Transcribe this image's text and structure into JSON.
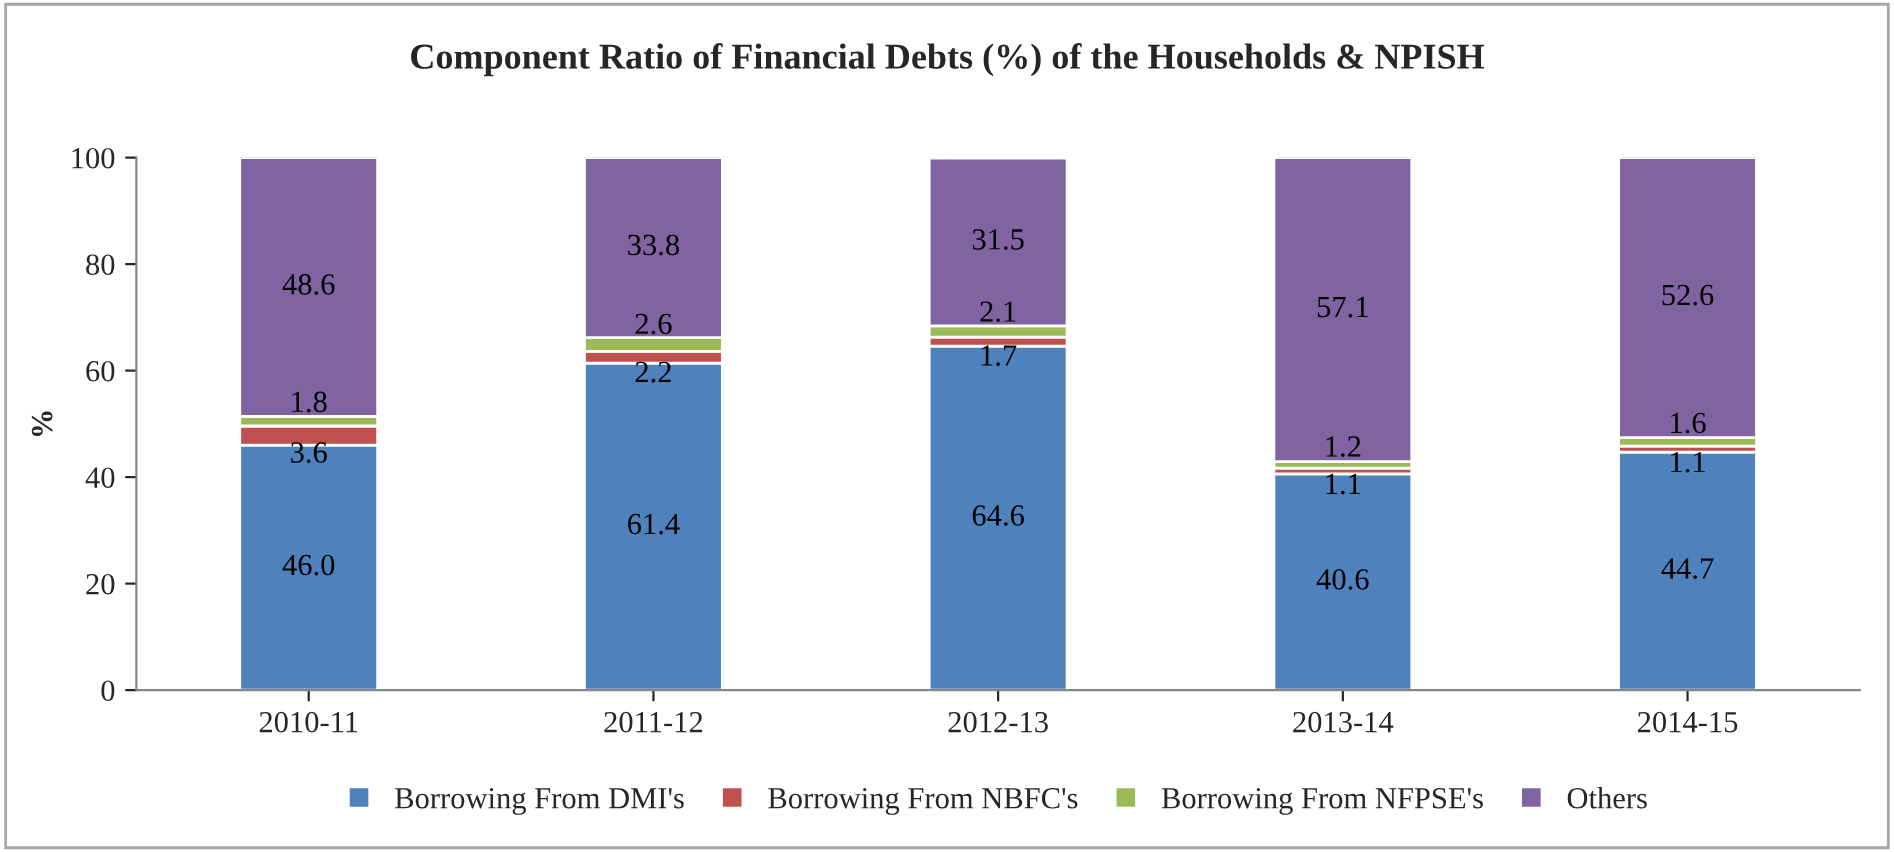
{
  "chart_data": {
    "type": "bar",
    "stacked": true,
    "title": "Component Ratio of Financial Debts (%) of the Households & NPISH",
    "ylabel": "%",
    "categories": [
      "2010-11",
      "2011-12",
      "2012-13",
      "2013-14",
      "2014-15"
    ],
    "series": [
      {
        "name": "Borrowing From DMI's",
        "color": "#4f81bd",
        "values": [
          46.0,
          61.4,
          64.6,
          40.6,
          44.7
        ],
        "value_labels": [
          "46.0",
          "61.4",
          "64.6",
          "40.6",
          "44.7"
        ]
      },
      {
        "name": "Borrowing From NBFC's",
        "color": "#c0504d",
        "values": [
          3.6,
          2.2,
          1.7,
          1.1,
          1.1
        ],
        "value_labels": [
          "3.6",
          "2.2",
          "1.7",
          "1.1",
          "1.1"
        ]
      },
      {
        "name": "Borrowing From NFPSE's",
        "color": "#9bbb59",
        "values": [
          1.8,
          2.6,
          2.1,
          1.2,
          1.6
        ],
        "value_labels": [
          "1.8",
          "2.6",
          "2.1",
          "1.2",
          "1.6"
        ]
      },
      {
        "name": "Others",
        "color": "#8064a2",
        "values": [
          48.6,
          33.8,
          31.5,
          57.1,
          52.6
        ],
        "value_labels": [
          "48.6",
          "33.8",
          "31.5",
          "57.1",
          "52.6"
        ]
      }
    ],
    "ylim": [
      0,
      100
    ],
    "yticks": [
      0,
      20,
      40,
      60,
      80,
      100
    ],
    "grid": false,
    "legend": "bottom"
  }
}
